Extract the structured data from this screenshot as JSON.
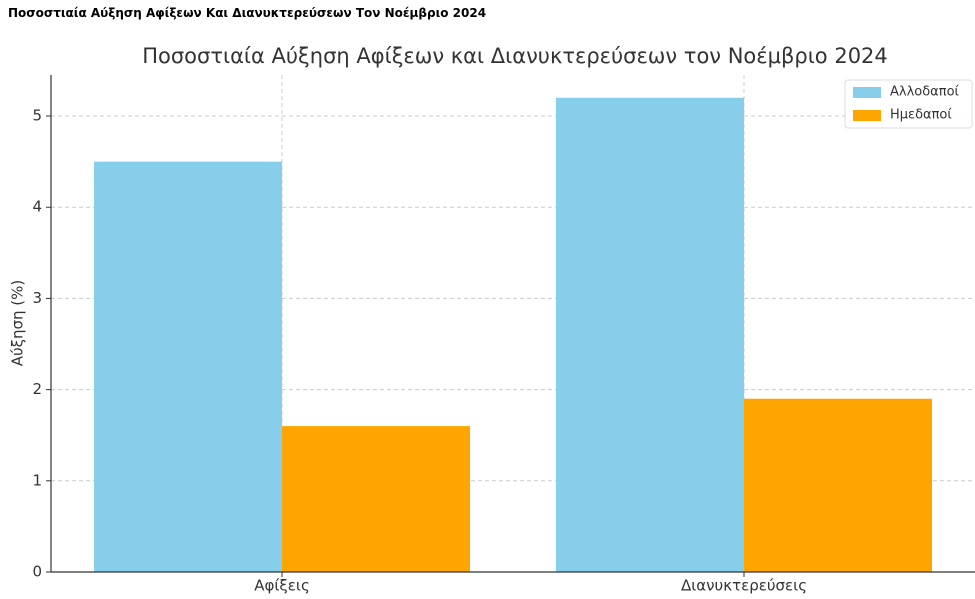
{
  "header": {
    "title": "Ποσοστιαία Αύξηση Αφίξεων Και Διανυκτερεύσεων Τον Νοέμβριο 2024"
  },
  "chart_data": {
    "type": "bar",
    "title": "Ποσοστιαία Αύξηση Αφίξεων και Διανυκτερεύσεων τον Νοέμβριο 2024",
    "ylabel": "Αύξηση (%)",
    "categories": [
      "Αφίξεις",
      "Διανυκτερεύσεις"
    ],
    "series": [
      {
        "name": "Αλλοδαποί",
        "color": "#87ceeb",
        "values": [
          4.5,
          5.2
        ]
      },
      {
        "name": "Ημεδαποί",
        "color": "#ffa500",
        "values": [
          1.6,
          1.9
        ]
      }
    ],
    "ylim": [
      0,
      5.45
    ],
    "yticks": [
      0,
      1,
      2,
      3,
      4,
      5
    ],
    "grid": true,
    "legend": "upper right"
  }
}
